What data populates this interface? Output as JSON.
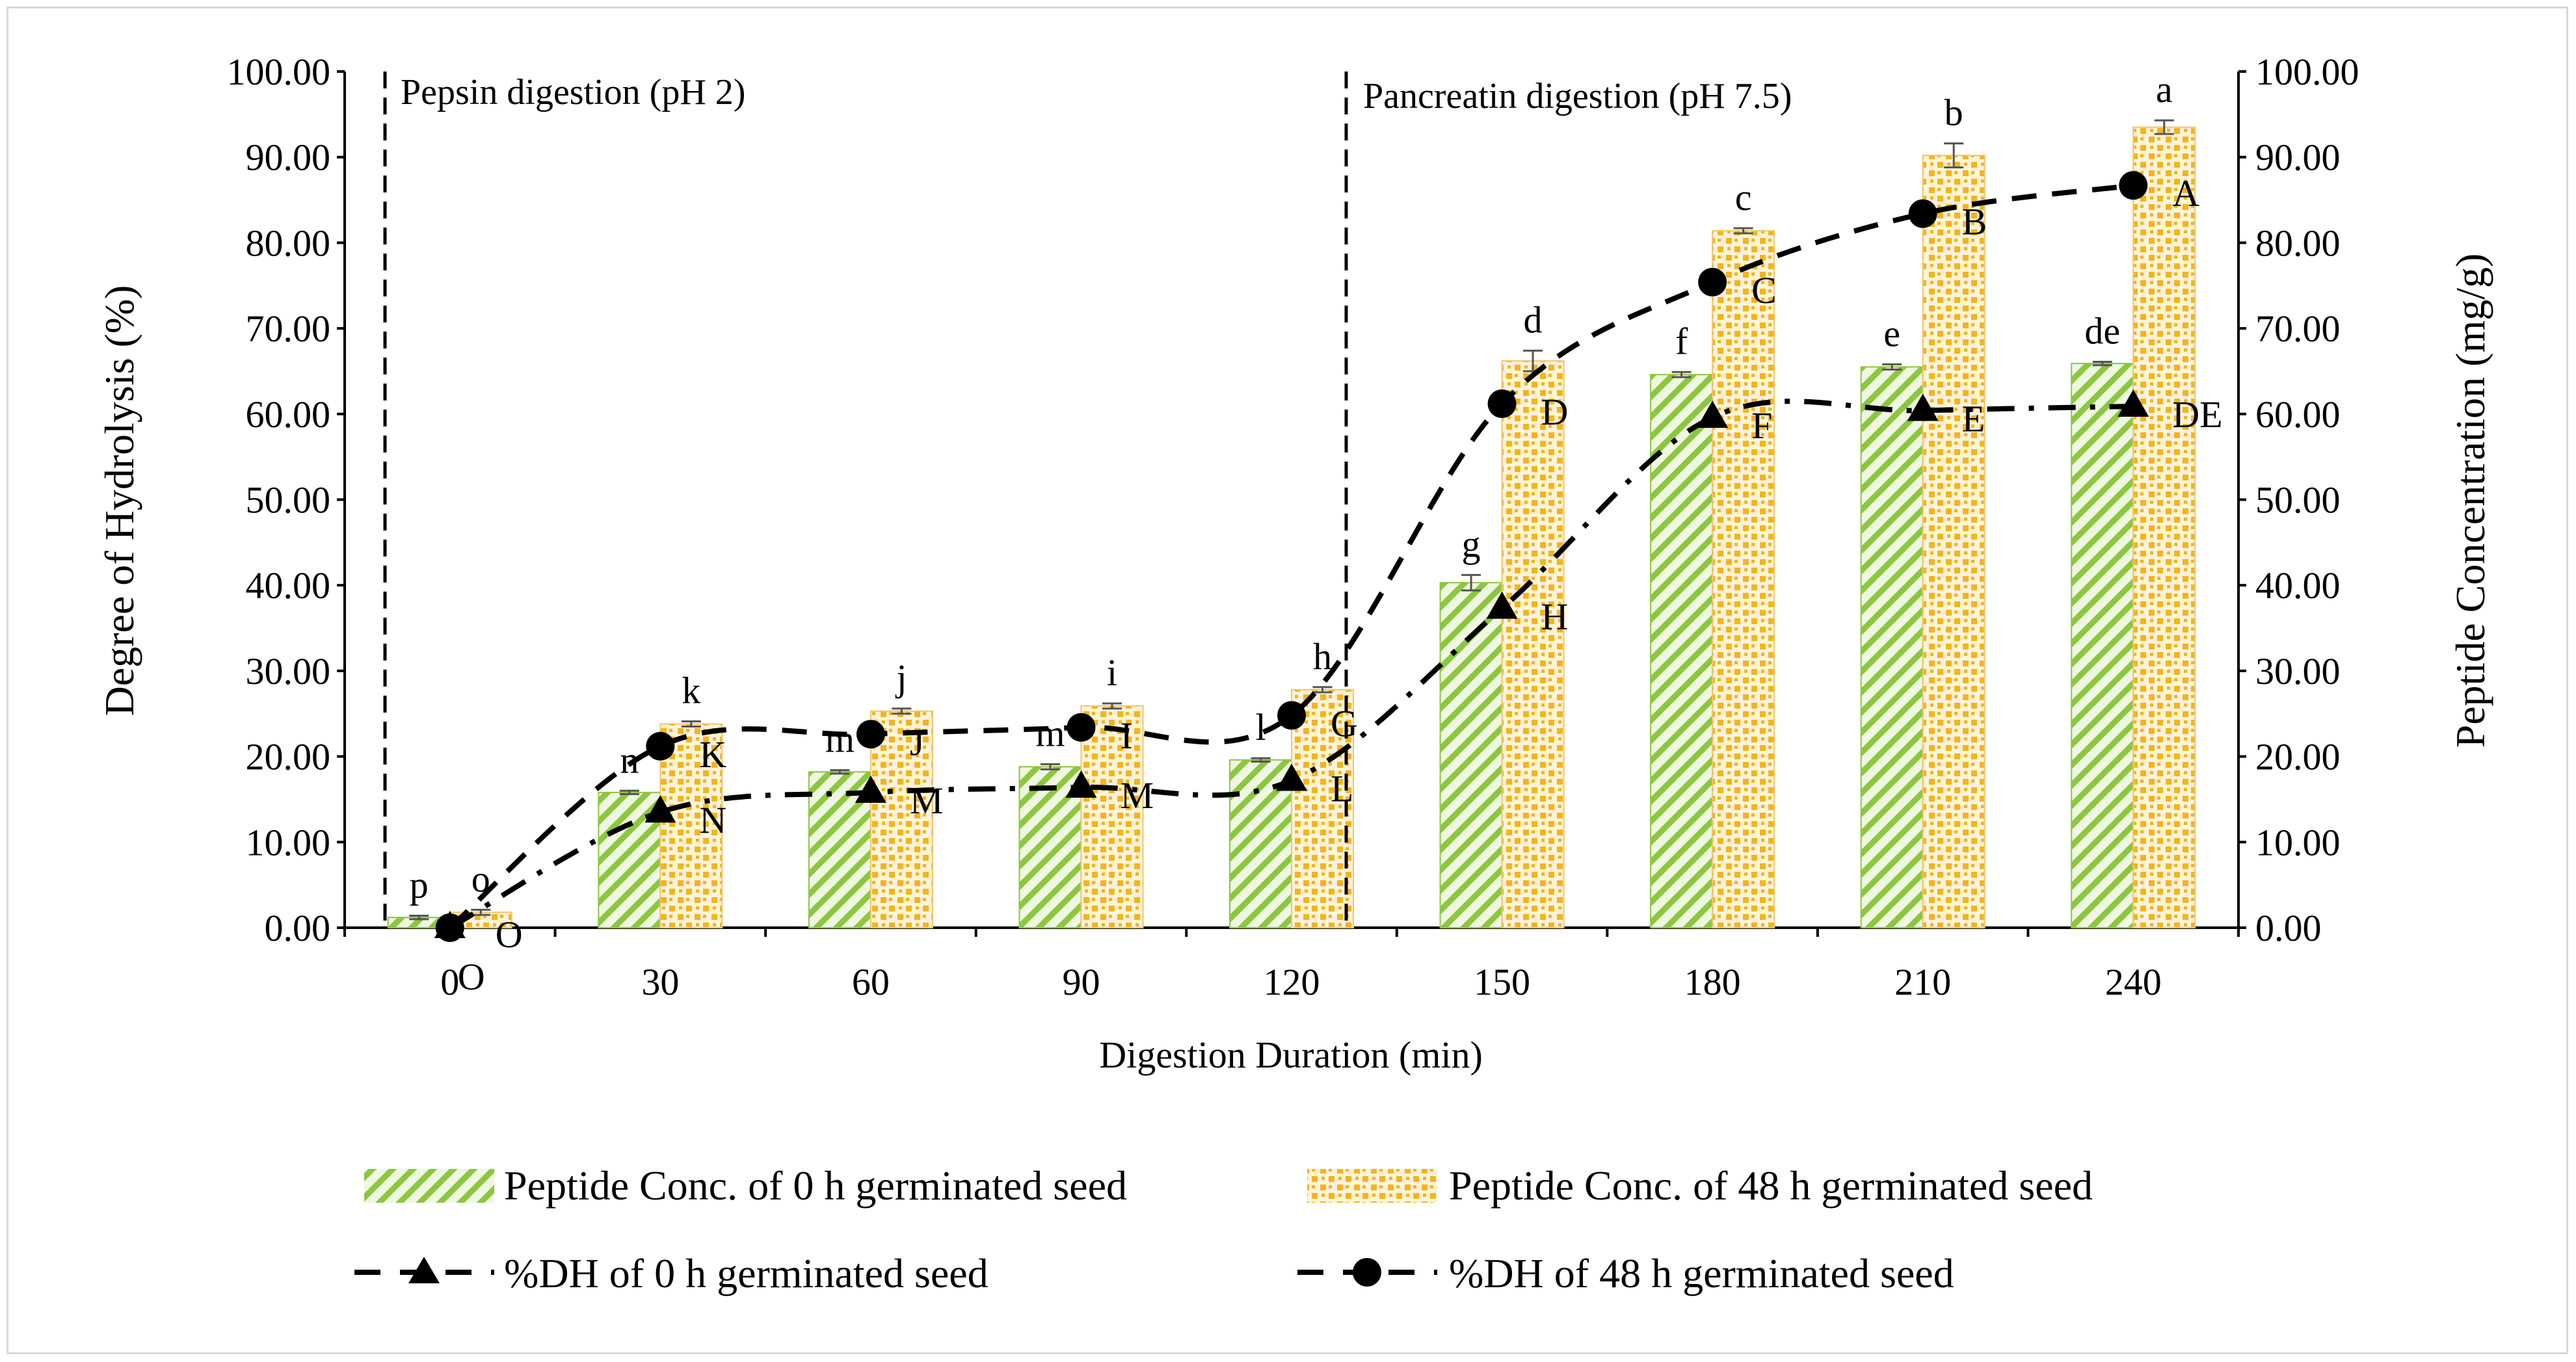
{
  "chart_data": {
    "type": "bar+line",
    "xlabel": "Digestion Duration (min)",
    "ylabel_left": "Degree of Hydrolysis (%)",
    "ylabel_right": "Peptide Concentration (mg/g)",
    "categories": [
      "0",
      "30",
      "60",
      "90",
      "120",
      "150",
      "180",
      "210",
      "240"
    ],
    "ylim_left": [
      0,
      100
    ],
    "ylim_right": [
      0,
      100
    ],
    "yticks": [
      "0.00",
      "10.00",
      "20.00",
      "30.00",
      "40.00",
      "50.00",
      "60.00",
      "70.00",
      "80.00",
      "90.00",
      "100.00"
    ],
    "phase_labels": [
      "Pepsin digestion (pH 2)",
      "Pancreatin digestion (pH 7.5)"
    ],
    "bar_series": [
      {
        "name": "Peptide Conc. of 0 h germinated seed",
        "color": "#8dc63f",
        "values": [
          1.2,
          15.8,
          18.2,
          18.8,
          19.6,
          40.3,
          64.6,
          65.5,
          65.9
        ],
        "errors": [
          0.2,
          0.2,
          0.2,
          0.3,
          0.2,
          0.9,
          0.3,
          0.3,
          0.2
        ],
        "letters": [
          "p",
          "n",
          "m",
          "m",
          "l",
          "g",
          "f",
          "e",
          "de"
        ]
      },
      {
        "name": "Peptide Conc. of 48 h germinated seed",
        "color": "#f5b41c",
        "values": [
          1.8,
          23.8,
          25.3,
          25.9,
          27.8,
          66.2,
          81.4,
          90.2,
          93.5
        ],
        "errors": [
          0.3,
          0.3,
          0.3,
          0.3,
          0.3,
          1.2,
          0.3,
          1.4,
          0.8
        ],
        "letters": [
          "o",
          "k",
          "j",
          "i",
          "h",
          "d",
          "c",
          "b",
          "a"
        ]
      }
    ],
    "line_series": [
      {
        "name": "%DH of 0 h germinated seed",
        "marker": "triangle",
        "values": [
          0,
          13.5,
          15.8,
          16.4,
          17.2,
          37.3,
          59.6,
          60.4,
          60.9
        ],
        "letters": [
          "O",
          "N",
          "M",
          "M",
          "L",
          "H",
          "F",
          "E",
          "DE"
        ]
      },
      {
        "name": "%DH of 48 h germinated seed",
        "marker": "circle",
        "values": [
          0,
          21.2,
          22.6,
          23.4,
          24.8,
          61.2,
          75.4,
          83.4,
          86.7
        ],
        "letters": [
          "O",
          "K",
          "J",
          "I",
          "G",
          "D",
          "C",
          "B",
          "A"
        ]
      }
    ]
  }
}
